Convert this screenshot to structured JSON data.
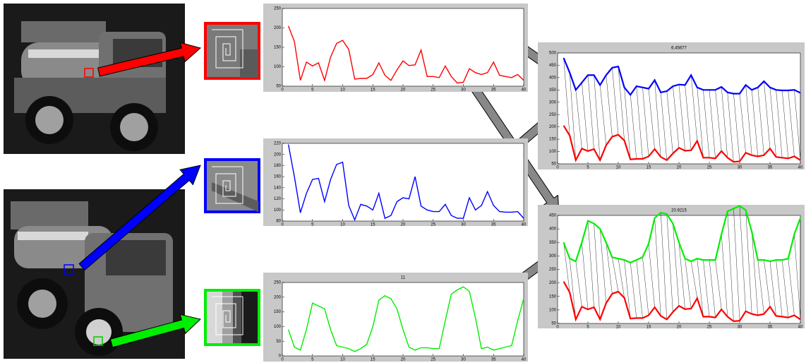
{
  "chart_data": [
    {
      "type": "line",
      "xlim": [
        0,
        40
      ],
      "ylim": [
        50,
        250
      ],
      "xticks": [
        0,
        5,
        10,
        15,
        20,
        25,
        30,
        35,
        40
      ],
      "yticks": [
        50,
        100,
        150,
        200,
        250
      ],
      "x": [
        1,
        2,
        3,
        4,
        5,
        6,
        7,
        8,
        9,
        10,
        11,
        12,
        13,
        14,
        15,
        16,
        17,
        18,
        19,
        20,
        21,
        22,
        23,
        24,
        25,
        26,
        27,
        28,
        29,
        30,
        31,
        32,
        33,
        34,
        35,
        36,
        37,
        38,
        39,
        40
      ],
      "series": [
        {
          "color": "#ff0000",
          "values": [
            205,
            165,
            65,
            112,
            102,
            110,
            65,
            125,
            160,
            168,
            145,
            68,
            70,
            70,
            80,
            110,
            78,
            65,
            92,
            115,
            103,
            105,
            143,
            75,
            75,
            72,
            102,
            75,
            58,
            60,
            95,
            85,
            80,
            85,
            112,
            78,
            75,
            72,
            80,
            65
          ]
        }
      ]
    },
    {
      "type": "line",
      "xlim": [
        0,
        40
      ],
      "ylim": [
        80,
        220
      ],
      "xticks": [
        0,
        5,
        10,
        15,
        20,
        25,
        30,
        35,
        40
      ],
      "yticks": [
        80,
        100,
        120,
        140,
        160,
        180,
        200,
        220
      ],
      "x": [
        1,
        2,
        3,
        4,
        5,
        6,
        7,
        8,
        9,
        10,
        11,
        12,
        13,
        14,
        15,
        16,
        17,
        18,
        19,
        20,
        21,
        22,
        23,
        24,
        25,
        26,
        27,
        28,
        29,
        30,
        31,
        32,
        33,
        34,
        35,
        36,
        37,
        38,
        39,
        40
      ],
      "series": [
        {
          "color": "#0000ff",
          "values": [
            218,
            160,
            95,
            130,
            155,
            157,
            115,
            155,
            182,
            186,
            108,
            82,
            110,
            107,
            100,
            130,
            85,
            90,
            115,
            122,
            120,
            160,
            107,
            100,
            97,
            97,
            110,
            90,
            85,
            85,
            122,
            100,
            108,
            133,
            108,
            97,
            96,
            96,
            97,
            85
          ]
        }
      ]
    },
    {
      "type": "line",
      "title": "11",
      "xlim": [
        0,
        40
      ],
      "ylim": [
        0,
        250
      ],
      "xticks": [
        0,
        5,
        10,
        15,
        20,
        25,
        30,
        35,
        40
      ],
      "yticks": [
        0,
        50,
        100,
        150,
        200,
        250
      ],
      "x": [
        1,
        2,
        3,
        4,
        5,
        6,
        7,
        8,
        9,
        10,
        11,
        12,
        13,
        14,
        15,
        16,
        17,
        18,
        19,
        20,
        21,
        22,
        23,
        24,
        25,
        26,
        27,
        28,
        29,
        30,
        31,
        32,
        33,
        34,
        35,
        36,
        37,
        38,
        39,
        40
      ],
      "series": [
        {
          "color": "#00ee00",
          "values": [
            90,
            30,
            20,
            90,
            180,
            170,
            160,
            90,
            35,
            30,
            25,
            15,
            25,
            40,
            100,
            190,
            205,
            195,
            160,
            90,
            30,
            20,
            28,
            28,
            25,
            25,
            120,
            210,
            225,
            235,
            220,
            130,
            25,
            30,
            20,
            25,
            30,
            35,
            120,
            195
          ]
        }
      ]
    },
    {
      "type": "line",
      "title": "6.45677",
      "xlim": [
        0,
        40
      ],
      "ylim": [
        50,
        500
      ],
      "xticks": [
        0,
        5,
        10,
        15,
        20,
        25,
        30,
        35,
        40
      ],
      "yticks": [
        50,
        100,
        150,
        200,
        250,
        300,
        350,
        400,
        450,
        500
      ],
      "x": [
        1,
        2,
        3,
        4,
        5,
        6,
        7,
        8,
        9,
        10,
        11,
        12,
        13,
        14,
        15,
        16,
        17,
        18,
        19,
        20,
        21,
        22,
        23,
        24,
        25,
        26,
        27,
        28,
        29,
        30,
        31,
        32,
        33,
        34,
        35,
        36,
        37,
        38,
        39,
        40
      ],
      "series": [
        {
          "color": "#0000ff",
          "values": [
            480,
            420,
            350,
            380,
            410,
            410,
            370,
            410,
            440,
            445,
            360,
            330,
            365,
            360,
            355,
            390,
            340,
            345,
            365,
            372,
            370,
            410,
            360,
            350,
            350,
            350,
            362,
            340,
            335,
            335,
            370,
            350,
            360,
            385,
            360,
            350,
            348,
            348,
            350,
            338
          ]
        },
        {
          "color": "#ff0000",
          "values": [
            205,
            165,
            65,
            112,
            102,
            110,
            65,
            125,
            160,
            168,
            145,
            68,
            70,
            70,
            80,
            110,
            78,
            65,
            92,
            115,
            103,
            105,
            143,
            75,
            75,
            72,
            102,
            75,
            58,
            60,
            95,
            85,
            80,
            85,
            112,
            78,
            75,
            72,
            80,
            65
          ]
        }
      ]
    },
    {
      "type": "line",
      "title": "20.9215",
      "xlim": [
        0,
        40
      ],
      "ylim": [
        50,
        450
      ],
      "xticks": [
        0,
        5,
        10,
        15,
        20,
        25,
        30,
        35,
        40
      ],
      "yticks": [
        50,
        100,
        150,
        200,
        250,
        300,
        350,
        400,
        450
      ],
      "x": [
        1,
        2,
        3,
        4,
        5,
        6,
        7,
        8,
        9,
        10,
        11,
        12,
        13,
        14,
        15,
        16,
        17,
        18,
        19,
        20,
        21,
        22,
        23,
        24,
        25,
        26,
        27,
        28,
        29,
        30,
        31,
        32,
        33,
        34,
        35,
        36,
        37,
        38,
        39,
        40
      ],
      "series": [
        {
          "color": "#00ee00",
          "values": [
            350,
            290,
            280,
            350,
            430,
            420,
            400,
            350,
            295,
            290,
            285,
            275,
            285,
            295,
            345,
            440,
            460,
            455,
            420,
            350,
            290,
            280,
            290,
            285,
            285,
            285,
            380,
            465,
            475,
            485,
            470,
            390,
            285,
            285,
            280,
            285,
            285,
            290,
            380,
            440
          ]
        },
        {
          "color": "#ff0000",
          "values": [
            205,
            165,
            65,
            112,
            102,
            110,
            65,
            125,
            160,
            168,
            145,
            68,
            70,
            70,
            80,
            110,
            78,
            65,
            92,
            115,
            103,
            105,
            143,
            75,
            75,
            72,
            102,
            75,
            58,
            60,
            95,
            85,
            80,
            85,
            112,
            78,
            75,
            72,
            80,
            65
          ]
        }
      ]
    }
  ]
}
